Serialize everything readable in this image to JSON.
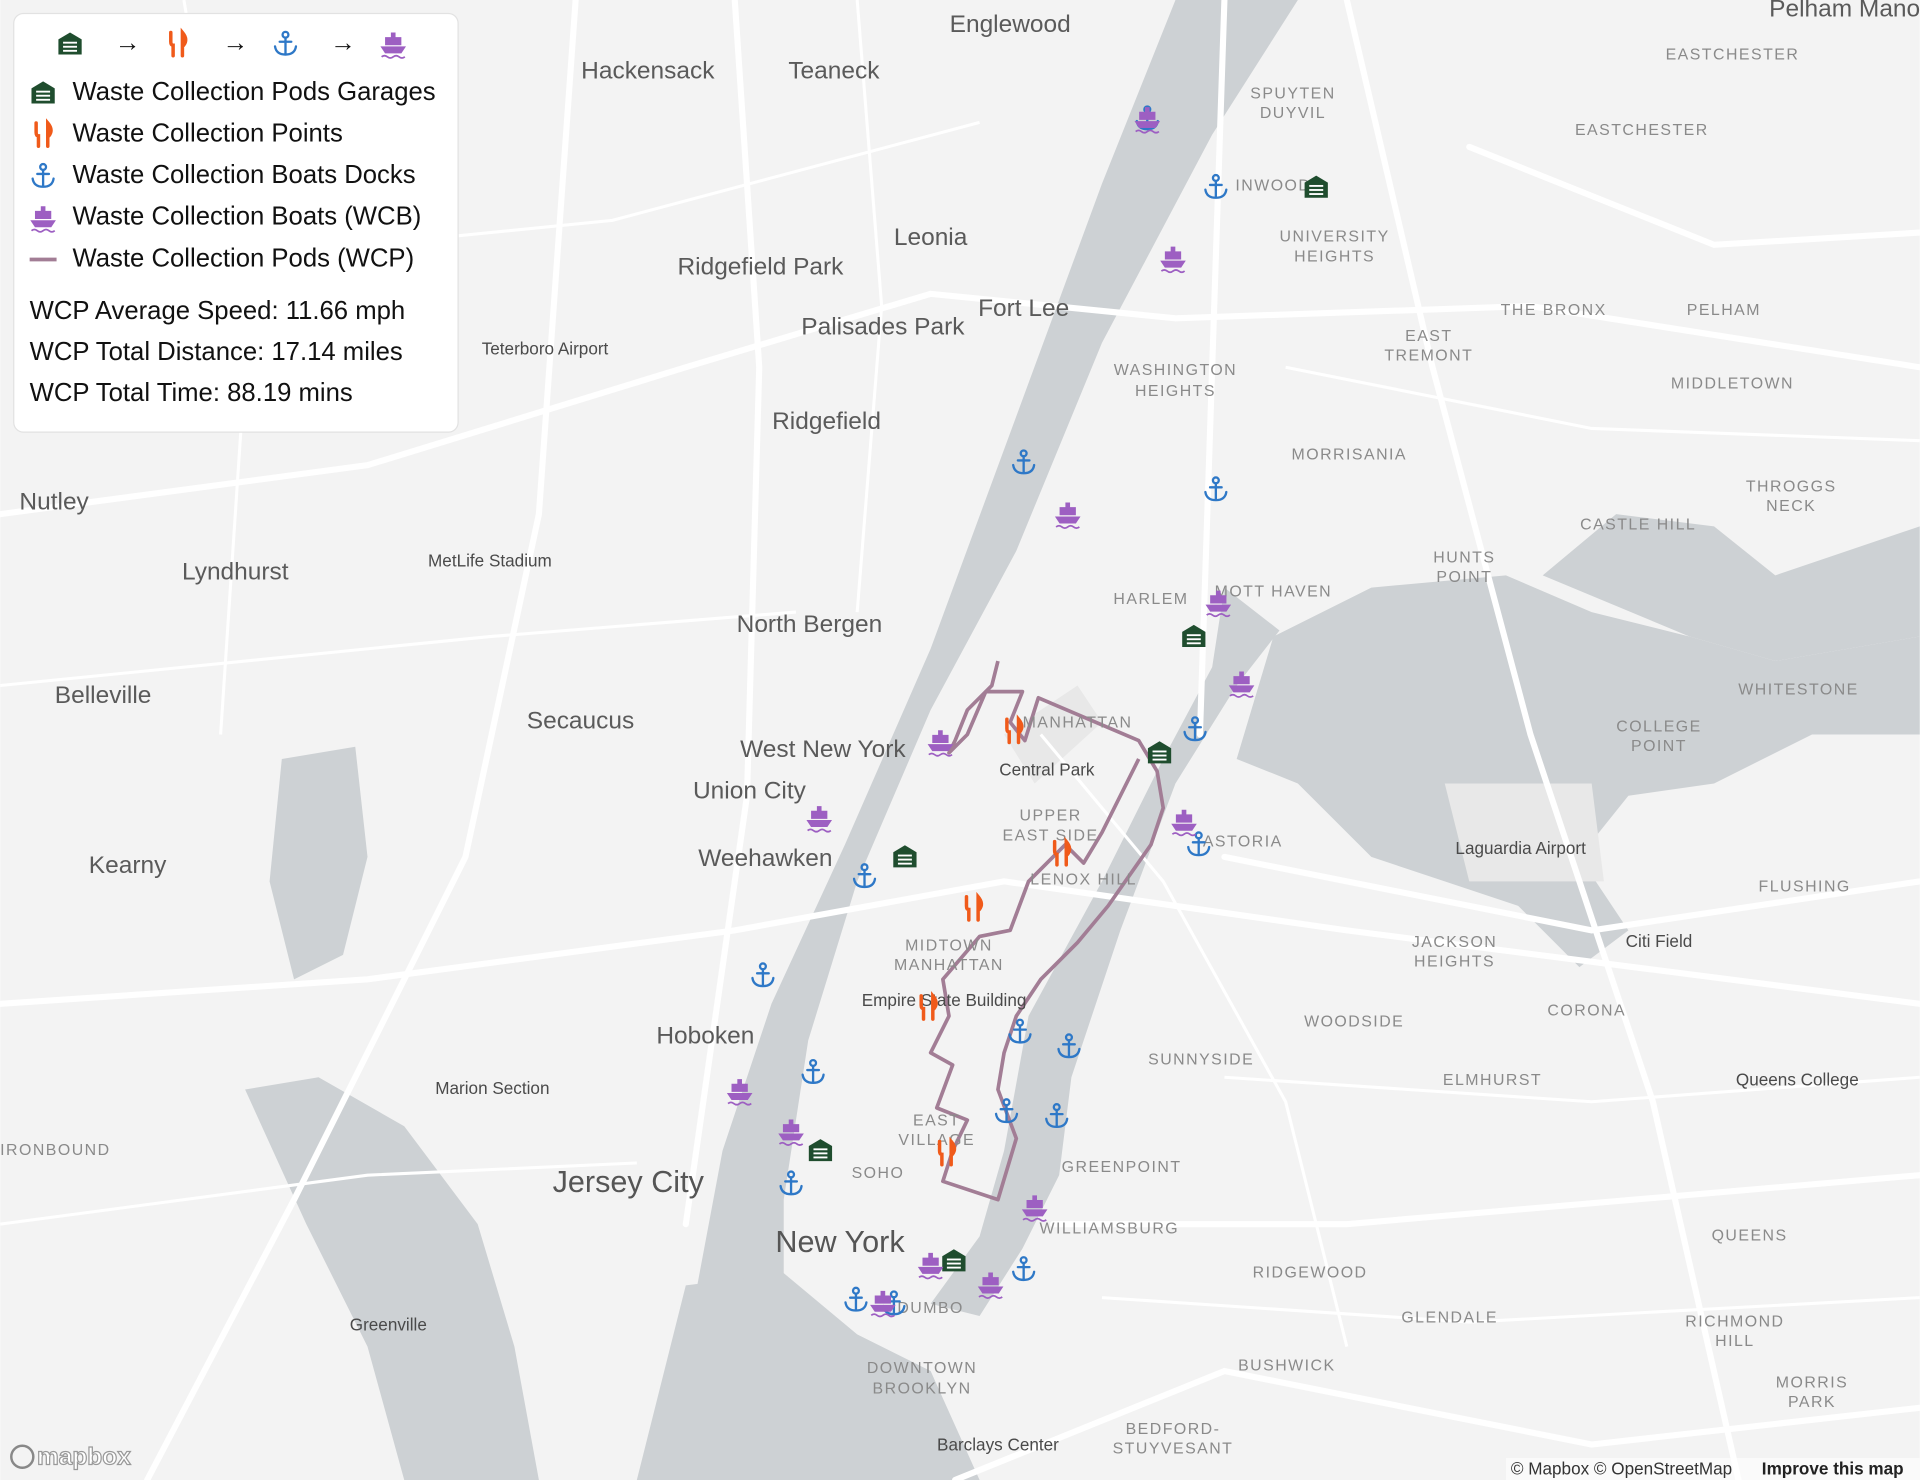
{
  "legend": {
    "flow_arrows": [
      "→",
      "→",
      "→"
    ],
    "items": [
      "Waste Collection Pods Garages",
      "Waste Collection Points",
      "Waste Collection Boats Docks",
      "Waste Collection Boats (WCB)",
      "Waste Collection Pods (WCP)"
    ],
    "stats": [
      "WCP Average Speed: 11.66 mph",
      "WCP Total Distance: 17.14 miles",
      "WCP Total Time: 88.19 mins"
    ]
  },
  "places": [
    "Englewood",
    "Hackensack",
    "Teaneck",
    "Leonia",
    "Ridgefield Park",
    "Fort Lee",
    "Palisades Park",
    "Teterboro Airport",
    "Ridgefield",
    "Nutley",
    "Lyndhurst",
    "MetLife Stadium",
    "North Bergen",
    "Belleville",
    "Secaucus",
    "West New York",
    "Union City",
    "Central Park",
    "Weehawken",
    "Kearny",
    "Hoboken",
    "Marion Section",
    "Jersey City",
    "New York",
    "Greenville",
    "Empire State Building",
    "Barclays Center",
    "Laguardia Airport",
    "Citi Field",
    "Queens College",
    "SPUYTEN",
    "DUYVIL",
    "INWOOD",
    "UNIVERSITY",
    "HEIGHTS",
    "WASHINGTON",
    "HEIGHTS",
    "HARLEM",
    "MOTT HAVEN",
    "MANHATTAN",
    "UPPER",
    "EAST SIDE",
    "LENOX HILL",
    "MIDTOWN",
    "MANHATTAN",
    "EAST",
    "VILLAGE",
    "SOHO",
    "DUMBO",
    "DOWNTOWN",
    "BROOKLYN",
    "ASTORIA",
    "THE BRONX",
    "PELHAM",
    "EASTCHESTER",
    "EASTCHESTER",
    "EAST",
    "TREMONT",
    "MORRISANIA",
    "MIDDLETOWN",
    "HUNTS",
    "POINT",
    "THROGGS",
    "NECK",
    "CASTLE HILL",
    "WHITESTONE",
    "COLLEGE",
    "POINT",
    "FLUSHING",
    "JACKSON",
    "HEIGHTS",
    "WOODSIDE",
    "CORONA",
    "SUNNYSIDE",
    "ELMHURST",
    "GREENPOINT",
    "WILLIAMSBURG",
    "RIDGEWOOD",
    "GLENDALE",
    "QUEENS",
    "RICHMOND",
    "HILL",
    "BUSHWICK",
    "BEDFORD-",
    "STUYVESANT",
    "MORRIS",
    "PARK",
    "IRONBOUND",
    "Pelham Manor"
  ],
  "attribution": {
    "logo": "mapbox",
    "credits": "© Mapbox © OpenStreetMap",
    "improve": "Improve this map"
  }
}
